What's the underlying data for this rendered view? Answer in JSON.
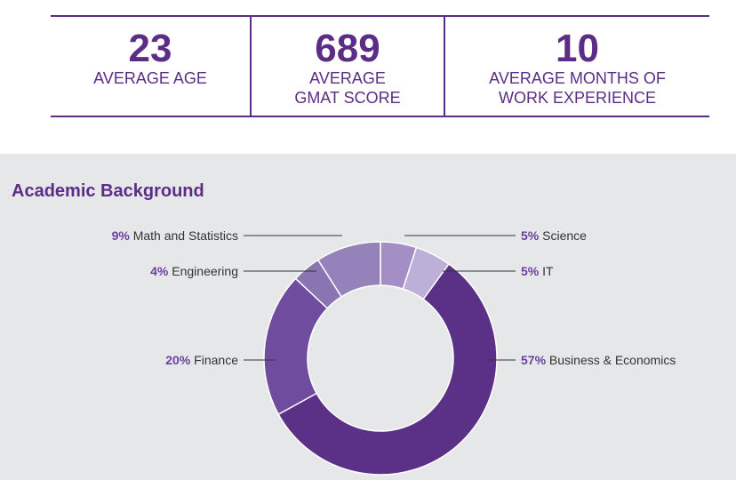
{
  "stats": [
    {
      "value": "23",
      "label_lines": [
        "AVERAGE AGE"
      ]
    },
    {
      "value": "689",
      "label_lines": [
        "AVERAGE",
        "GMAT SCORE"
      ]
    },
    {
      "value": "10",
      "label_lines": [
        "AVERAGE MONTHS OF",
        "WORK EXPERIENCE"
      ]
    }
  ],
  "panel": {
    "title": "Academic Background"
  },
  "colors": {
    "accent": "#5b2d86",
    "panel_bg": "#e6e7e9"
  },
  "chart_data": {
    "type": "pie",
    "title": "Academic Background",
    "variant": "donut",
    "slices": [
      {
        "label": "Science",
        "percent_text": "5%",
        "value": 5,
        "color": "#a48ec6"
      },
      {
        "label": "IT",
        "percent_text": "5%",
        "value": 5,
        "color": "#bcb0d8"
      },
      {
        "label": "Business & Economics",
        "percent_text": "57%",
        "value": 57,
        "color": "#5b3187"
      },
      {
        "label": "Finance",
        "percent_text": "20%",
        "value": 20,
        "color": "#6f4c9e"
      },
      {
        "label": "Engineering",
        "percent_text": "4%",
        "value": 4,
        "color": "#8a74b2"
      },
      {
        "label": "Math and Statistics",
        "percent_text": "9%",
        "value": 9,
        "color": "#9682bb"
      }
    ]
  }
}
